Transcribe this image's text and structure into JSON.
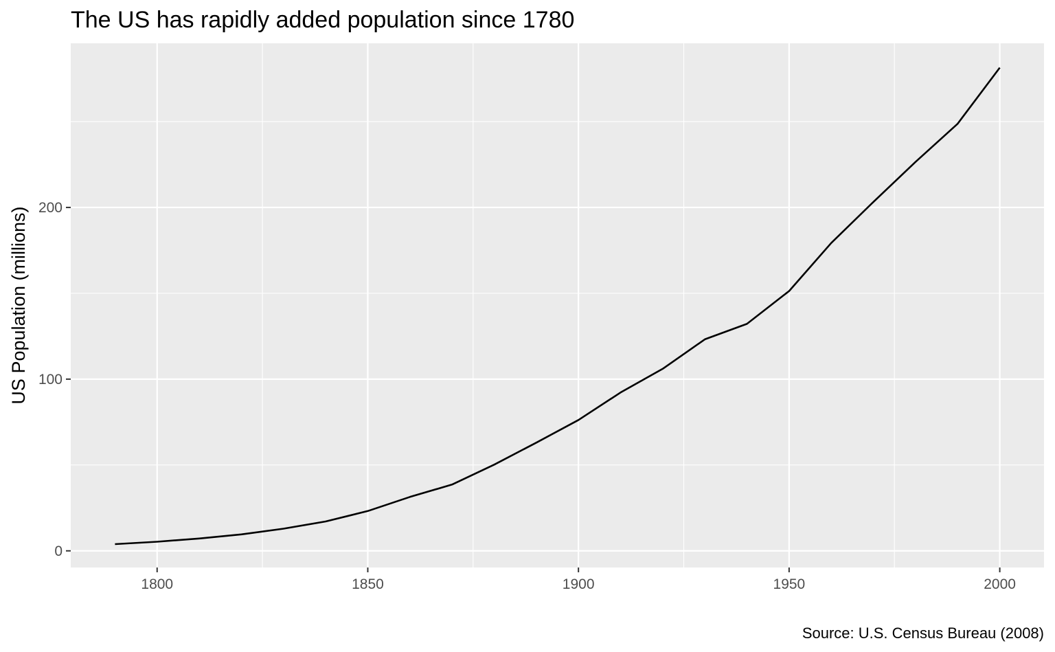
{
  "colors": {
    "panel_background": "#EBEBEB",
    "gridline": "#FFFFFF",
    "line": "#000000",
    "tick_label": "#4D4D4D",
    "text": "#000000"
  },
  "chart_data": {
    "type": "line",
    "title": "The US has rapidly added population since 1780",
    "xlabel": "",
    "ylabel": "US Population (millions)",
    "caption": "Source: U.S. Census Bureau (2008)",
    "xlim": [
      1779.5,
      2010.5
    ],
    "ylim": [
      -9.7,
      295.6
    ],
    "x_ticks": [
      1800,
      1850,
      1900,
      1950,
      2000
    ],
    "x_minor_ticks": [
      1775,
      1825,
      1875,
      1925,
      1975
    ],
    "y_ticks": [
      0,
      100,
      200
    ],
    "y_minor_ticks": [
      50,
      150,
      250
    ],
    "grid": true,
    "legend": "none",
    "series": [
      {
        "x": [
          1790,
          1800,
          1810,
          1820,
          1830,
          1840,
          1850,
          1860,
          1870,
          1880,
          1890,
          1900,
          1910,
          1920,
          1930,
          1940,
          1950,
          1960,
          1970,
          1980,
          1990,
          2000
        ],
        "values": [
          3.9,
          5.3,
          7.2,
          9.6,
          12.9,
          17.1,
          23.2,
          31.4,
          38.6,
          50.2,
          63.0,
          76.2,
          92.2,
          106.0,
          123.2,
          132.2,
          151.3,
          179.3,
          203.2,
          226.5,
          248.7,
          281.4
        ]
      }
    ]
  }
}
